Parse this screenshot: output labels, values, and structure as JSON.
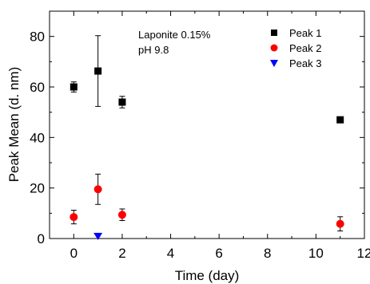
{
  "chart_data": {
    "type": "scatter",
    "xlabel": "Time (day)",
    "ylabel": "Peak Mean (d. nm)",
    "xlim": [
      -1,
      12
    ],
    "ylim": [
      0,
      90
    ],
    "xticks": [
      0,
      2,
      4,
      6,
      8,
      10,
      12
    ],
    "yticks": [
      0,
      20,
      40,
      60,
      80
    ],
    "annotation": [
      "Laponite 0.15%",
      "pH 9.8"
    ],
    "legend_position": "top-right",
    "series": [
      {
        "name": "Peak 1",
        "marker": "square",
        "color": "#000000",
        "points": [
          {
            "x": 0,
            "y": 60,
            "err": 2
          },
          {
            "x": 1,
            "y": 66.3,
            "err": 14
          },
          {
            "x": 2,
            "y": 54,
            "err": 2.3
          },
          {
            "x": 11,
            "y": 47,
            "err": 0
          }
        ]
      },
      {
        "name": "Peak 2",
        "marker": "circle",
        "color": "#ff0000",
        "points": [
          {
            "x": 0,
            "y": 8.5,
            "err": 2.7
          },
          {
            "x": 1,
            "y": 19.5,
            "err": 6
          },
          {
            "x": 2,
            "y": 9.4,
            "err": 2.3
          },
          {
            "x": 11,
            "y": 5.8,
            "err": 2.8
          }
        ]
      },
      {
        "name": "Peak 3",
        "marker": "triangle-down",
        "color": "#0000ff",
        "points": [
          {
            "x": 1,
            "y": 1,
            "err": 0
          }
        ]
      }
    ]
  }
}
